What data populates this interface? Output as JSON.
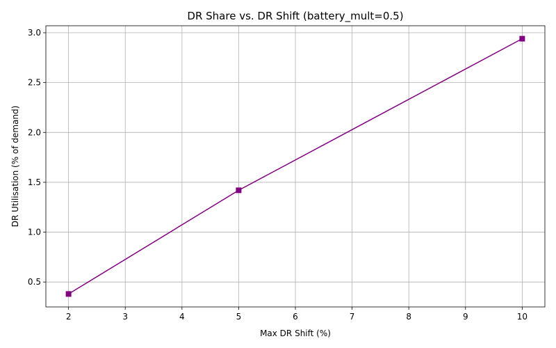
{
  "chart_data": {
    "type": "line",
    "title": "DR Share vs. DR Shift (battery_mult=0.5)",
    "xlabel": "Max DR Shift (%)",
    "ylabel": "DR Utilisation (% of demand)",
    "x": [
      2,
      5,
      10
    ],
    "series": [
      {
        "values": [
          0.38,
          1.42,
          2.94
        ]
      }
    ],
    "xlim": [
      1.6,
      10.4
    ],
    "ylim": [
      0.25,
      3.07
    ],
    "xticks": [
      "2",
      "3",
      "4",
      "5",
      "6",
      "7",
      "8",
      "9",
      "10"
    ],
    "yticks": [
      "0.5",
      "1.0",
      "1.5",
      "2.0",
      "2.5",
      "3.0"
    ],
    "grid": true,
    "marker": "square",
    "line_color": "#800080"
  }
}
